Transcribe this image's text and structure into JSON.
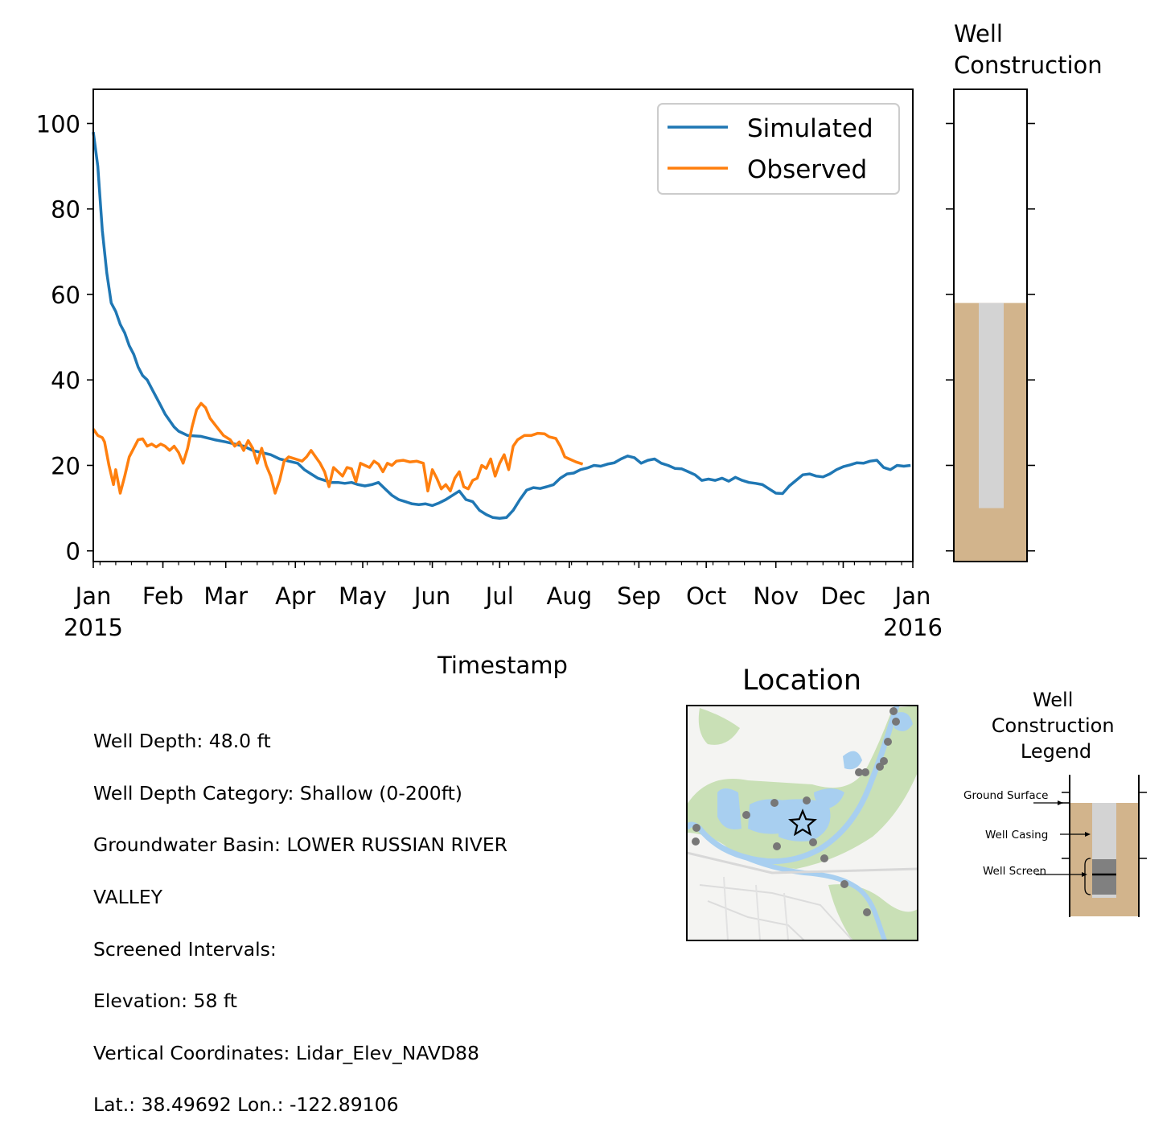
{
  "colors": {
    "simulated": "#1f77b4",
    "observed": "#ff7f0e",
    "soil": "#d2b48c",
    "casing": "#d3d3d3",
    "screen": "#808080",
    "map_water": "#a8cff0",
    "map_vegetation": "#c9e0b6",
    "map_points": "#777777"
  },
  "chart_data": {
    "type": "line",
    "xlabel": "Timestamp",
    "ylabel": "",
    "x_range": [
      "2015-01-01",
      "2016-01-01"
    ],
    "ylim": [
      -2.5,
      108
    ],
    "yticks": [
      0,
      20,
      40,
      60,
      80,
      100
    ],
    "xtick_labels": [
      "Jan\n2015",
      "Feb",
      "Mar",
      "Apr",
      "May",
      "Jun",
      "Jul",
      "Aug",
      "Sep",
      "Oct",
      "Nov",
      "Dec",
      "Jan\n2016"
    ],
    "grid": false,
    "legend": "upper right",
    "series": [
      {
        "name": "Simulated",
        "points": [
          [
            "2015-01-01",
            98
          ],
          [
            "2015-01-03",
            90
          ],
          [
            "2015-01-05",
            75
          ],
          [
            "2015-01-07",
            65
          ],
          [
            "2015-01-09",
            58
          ],
          [
            "2015-01-11",
            56
          ],
          [
            "2015-01-13",
            53
          ],
          [
            "2015-01-15",
            51
          ],
          [
            "2015-01-17",
            48
          ],
          [
            "2015-01-19",
            46
          ],
          [
            "2015-01-21",
            43
          ],
          [
            "2015-01-23",
            41
          ],
          [
            "2015-01-25",
            40
          ],
          [
            "2015-01-27",
            38
          ],
          [
            "2015-01-29",
            36
          ],
          [
            "2015-01-31",
            34
          ],
          [
            "2015-02-02",
            32
          ],
          [
            "2015-02-04",
            30.5
          ],
          [
            "2015-02-06",
            29
          ],
          [
            "2015-02-08",
            28
          ],
          [
            "2015-02-12",
            27
          ],
          [
            "2015-02-18",
            26.8
          ],
          [
            "2015-02-24",
            26
          ],
          [
            "2015-03-01",
            25.5
          ],
          [
            "2015-03-05",
            25
          ],
          [
            "2015-03-09",
            24.5
          ],
          [
            "2015-03-13",
            23.5
          ],
          [
            "2015-03-17",
            23
          ],
          [
            "2015-03-21",
            22.5
          ],
          [
            "2015-03-25",
            21.5
          ],
          [
            "2015-03-29",
            21
          ],
          [
            "2015-04-02",
            20.5
          ],
          [
            "2015-04-05",
            19
          ],
          [
            "2015-04-08",
            18
          ],
          [
            "2015-04-11",
            17
          ],
          [
            "2015-04-14",
            16.5
          ],
          [
            "2015-04-17",
            16
          ],
          [
            "2015-04-20",
            16
          ],
          [
            "2015-04-23",
            15.8
          ],
          [
            "2015-04-26",
            16
          ],
          [
            "2015-04-29",
            15.5
          ],
          [
            "2015-05-02",
            15.2
          ],
          [
            "2015-05-05",
            15.5
          ],
          [
            "2015-05-08",
            16
          ],
          [
            "2015-05-11",
            14.5
          ],
          [
            "2015-05-14",
            13
          ],
          [
            "2015-05-17",
            12
          ],
          [
            "2015-05-20",
            11.5
          ],
          [
            "2015-05-23",
            11
          ],
          [
            "2015-05-26",
            10.8
          ],
          [
            "2015-05-29",
            11
          ],
          [
            "2015-06-01",
            10.6
          ],
          [
            "2015-06-04",
            11.2
          ],
          [
            "2015-06-07",
            12
          ],
          [
            "2015-06-10",
            13
          ],
          [
            "2015-06-13",
            14
          ],
          [
            "2015-06-16",
            12
          ],
          [
            "2015-06-19",
            11.5
          ],
          [
            "2015-06-22",
            9.5
          ],
          [
            "2015-06-25",
            8.5
          ],
          [
            "2015-06-28",
            7.8
          ],
          [
            "2015-07-01",
            7.6
          ],
          [
            "2015-07-04",
            7.8
          ],
          [
            "2015-07-07",
            9.5
          ],
          [
            "2015-07-10",
            12
          ],
          [
            "2015-07-13",
            14.2
          ],
          [
            "2015-07-16",
            14.8
          ],
          [
            "2015-07-19",
            14.6
          ],
          [
            "2015-07-22",
            15
          ],
          [
            "2015-07-25",
            15.5
          ],
          [
            "2015-07-28",
            17
          ],
          [
            "2015-07-31",
            18
          ],
          [
            "2015-08-03",
            18.2
          ],
          [
            "2015-08-06",
            19
          ],
          [
            "2015-08-09",
            19.4
          ],
          [
            "2015-08-12",
            20
          ],
          [
            "2015-08-15",
            19.8
          ],
          [
            "2015-08-18",
            20.3
          ],
          [
            "2015-08-21",
            20.6
          ],
          [
            "2015-08-24",
            21.5
          ],
          [
            "2015-08-27",
            22.2
          ],
          [
            "2015-08-30",
            21.8
          ],
          [
            "2015-09-02",
            20.5
          ],
          [
            "2015-09-05",
            21.2
          ],
          [
            "2015-09-08",
            21.5
          ],
          [
            "2015-09-11",
            20.5
          ],
          [
            "2015-09-14",
            20
          ],
          [
            "2015-09-17",
            19.3
          ],
          [
            "2015-09-20",
            19.2
          ],
          [
            "2015-09-23",
            18.5
          ],
          [
            "2015-09-26",
            17.8
          ],
          [
            "2015-09-29",
            16.5
          ],
          [
            "2015-10-02",
            16.8
          ],
          [
            "2015-10-05",
            16.5
          ],
          [
            "2015-10-08",
            17
          ],
          [
            "2015-10-11",
            16.3
          ],
          [
            "2015-10-14",
            17.2
          ],
          [
            "2015-10-17",
            16.5
          ],
          [
            "2015-10-20",
            16
          ],
          [
            "2015-10-23",
            15.8
          ],
          [
            "2015-10-26",
            15.5
          ],
          [
            "2015-10-29",
            14.5
          ],
          [
            "2015-11-01",
            13.5
          ],
          [
            "2015-11-04",
            13.4
          ],
          [
            "2015-11-07",
            15.2
          ],
          [
            "2015-11-10",
            16.5
          ],
          [
            "2015-11-13",
            17.8
          ],
          [
            "2015-11-16",
            18
          ],
          [
            "2015-11-19",
            17.5
          ],
          [
            "2015-11-22",
            17.3
          ],
          [
            "2015-11-25",
            18
          ],
          [
            "2015-11-28",
            19
          ],
          [
            "2015-12-01",
            19.7
          ],
          [
            "2015-12-04",
            20.1
          ],
          [
            "2015-12-07",
            20.6
          ],
          [
            "2015-12-10",
            20.5
          ],
          [
            "2015-12-13",
            21
          ],
          [
            "2015-12-16",
            21.2
          ],
          [
            "2015-12-19",
            19.5
          ],
          [
            "2015-12-22",
            19
          ],
          [
            "2015-12-25",
            20
          ],
          [
            "2015-12-28",
            19.8
          ],
          [
            "2015-12-31",
            20
          ]
        ]
      },
      {
        "name": "Observed",
        "points": [
          [
            "2015-01-01",
            28.5
          ],
          [
            "2015-01-03",
            27
          ],
          [
            "2015-01-05",
            26.5
          ],
          [
            "2015-01-06",
            25.5
          ],
          [
            "2015-01-08",
            20
          ],
          [
            "2015-01-10",
            15.5
          ],
          [
            "2015-01-11",
            19
          ],
          [
            "2015-01-13",
            13.5
          ],
          [
            "2015-01-15",
            17.5
          ],
          [
            "2015-01-17",
            22
          ],
          [
            "2015-01-19",
            24
          ],
          [
            "2015-01-21",
            26
          ],
          [
            "2015-01-23",
            26.2
          ],
          [
            "2015-01-25",
            24.5
          ],
          [
            "2015-01-27",
            25
          ],
          [
            "2015-01-29",
            24.3
          ],
          [
            "2015-01-31",
            25
          ],
          [
            "2015-02-02",
            24.5
          ],
          [
            "2015-02-04",
            23.5
          ],
          [
            "2015-02-06",
            24.5
          ],
          [
            "2015-02-08",
            23
          ],
          [
            "2015-02-10",
            20.5
          ],
          [
            "2015-02-12",
            24
          ],
          [
            "2015-02-14",
            29
          ],
          [
            "2015-02-16",
            33
          ],
          [
            "2015-02-18",
            34.5
          ],
          [
            "2015-02-20",
            33.5
          ],
          [
            "2015-02-22",
            31
          ],
          [
            "2015-02-25",
            29
          ],
          [
            "2015-02-28",
            27
          ],
          [
            "2015-03-03",
            26
          ],
          [
            "2015-03-05",
            24.5
          ],
          [
            "2015-03-07",
            25.5
          ],
          [
            "2015-03-09",
            23.5
          ],
          [
            "2015-03-11",
            25.8
          ],
          [
            "2015-03-13",
            24
          ],
          [
            "2015-03-15",
            20.5
          ],
          [
            "2015-03-17",
            24
          ],
          [
            "2015-03-19",
            20
          ],
          [
            "2015-03-21",
            17.5
          ],
          [
            "2015-03-23",
            13.5
          ],
          [
            "2015-03-25",
            16.5
          ],
          [
            "2015-03-27",
            21
          ],
          [
            "2015-03-29",
            22
          ],
          [
            "2015-04-01",
            21.5
          ],
          [
            "2015-04-04",
            21
          ],
          [
            "2015-04-06",
            22
          ],
          [
            "2015-04-08",
            23.5
          ],
          [
            "2015-04-10",
            22
          ],
          [
            "2015-04-12",
            20.5
          ],
          [
            "2015-04-14",
            18.5
          ],
          [
            "2015-04-16",
            15
          ],
          [
            "2015-04-18",
            19.5
          ],
          [
            "2015-04-20",
            18.5
          ],
          [
            "2015-04-22",
            17.5
          ],
          [
            "2015-04-24",
            19.5
          ],
          [
            "2015-04-26",
            19.2
          ],
          [
            "2015-04-28",
            16.2
          ],
          [
            "2015-04-30",
            20.5
          ],
          [
            "2015-05-02",
            20
          ],
          [
            "2015-05-04",
            19.5
          ],
          [
            "2015-05-06",
            21
          ],
          [
            "2015-05-08",
            20.3
          ],
          [
            "2015-05-10",
            18.5
          ],
          [
            "2015-05-12",
            20.5
          ],
          [
            "2015-05-14",
            20
          ],
          [
            "2015-05-16",
            21
          ],
          [
            "2015-05-19",
            21.2
          ],
          [
            "2015-05-22",
            20.8
          ],
          [
            "2015-05-25",
            21
          ],
          [
            "2015-05-28",
            20.5
          ],
          [
            "2015-05-30",
            14
          ],
          [
            "2015-06-01",
            19
          ],
          [
            "2015-06-03",
            17
          ],
          [
            "2015-06-05",
            14.5
          ],
          [
            "2015-06-07",
            15.5
          ],
          [
            "2015-06-09",
            14
          ],
          [
            "2015-06-11",
            17
          ],
          [
            "2015-06-13",
            18.5
          ],
          [
            "2015-06-15",
            15
          ],
          [
            "2015-06-17",
            14.5
          ],
          [
            "2015-06-19",
            16.5
          ],
          [
            "2015-06-21",
            17
          ],
          [
            "2015-06-23",
            20
          ],
          [
            "2015-06-25",
            19.3
          ],
          [
            "2015-06-27",
            21.5
          ],
          [
            "2015-06-29",
            17.5
          ],
          [
            "2015-07-01",
            20.5
          ],
          [
            "2015-07-03",
            22.5
          ],
          [
            "2015-07-05",
            19
          ],
          [
            "2015-07-07",
            24.5
          ],
          [
            "2015-07-09",
            26
          ],
          [
            "2015-07-12",
            27
          ],
          [
            "2015-07-15",
            27
          ],
          [
            "2015-07-18",
            27.5
          ],
          [
            "2015-07-21",
            27.4
          ],
          [
            "2015-07-23",
            26.7
          ],
          [
            "2015-07-26",
            26.3
          ],
          [
            "2015-07-28",
            24.5
          ],
          [
            "2015-07-30",
            22
          ],
          [
            "2015-08-01",
            21.5
          ],
          [
            "2015-08-04",
            20.8
          ],
          [
            "2015-08-07",
            20.3
          ]
        ]
      }
    ]
  },
  "well_panel": {
    "title": "Well\nConstruction",
    "ylim": [
      -2.5,
      108
    ],
    "ground_surface": 58,
    "casing_bottom": 10
  },
  "info": {
    "lines": [
      "Well Depth: 48.0 ft",
      "Well Depth Category: Shallow (0-200ft)",
      "Groundwater Basin: LOWER RUSSIAN RIVER",
      "VALLEY",
      "Screened Intervals:",
      "Elevation: 58 ft",
      "Vertical Coordinates: Lidar_Elev_NAVD88",
      "Lat.: 38.49692 Lon.: -122.89106"
    ]
  },
  "map": {
    "title": "Location",
    "marker": "star-icon"
  },
  "legend_panel": {
    "title_lines": [
      "Well",
      "Construction",
      "Legend"
    ],
    "labels": [
      "Ground Surface",
      "Well Casing",
      "Well Screen"
    ]
  }
}
